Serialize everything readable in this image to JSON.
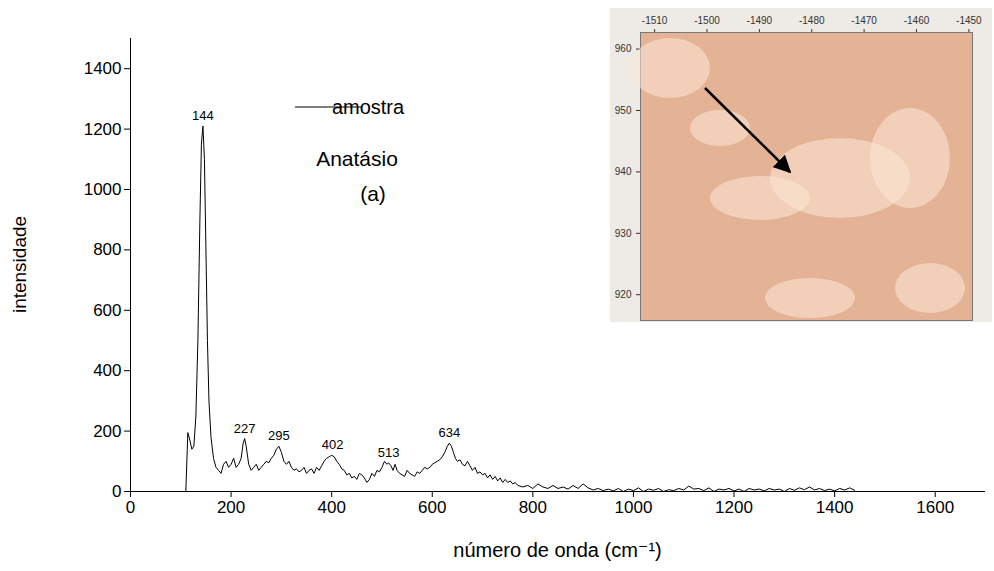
{
  "chart_data": [
    {
      "type": "line",
      "xlabel": "número de onda (cm⁻¹)",
      "ylabel": "intensidade",
      "annotations": [
        "Anatásio",
        "(a)"
      ],
      "peaks": [
        144,
        227,
        295,
        402,
        513,
        634
      ],
      "xlim": [
        0,
        1700
      ],
      "xticks": [
        0,
        200,
        400,
        600,
        800,
        1000,
        1200,
        1400,
        1600
      ],
      "ylim": [
        0,
        1500
      ],
      "yticks": [
        0,
        200,
        400,
        600,
        800,
        1000,
        1200,
        1400
      ],
      "grid": false,
      "legend": "top",
      "x": [
        110,
        114,
        118,
        122,
        126,
        130,
        134,
        138,
        141,
        144,
        147,
        150,
        153,
        156,
        160,
        165,
        170,
        175,
        180,
        185,
        190,
        195,
        200,
        205,
        210,
        215,
        220,
        224,
        227,
        230,
        235,
        240,
        245,
        250,
        255,
        260,
        265,
        270,
        275,
        280,
        285,
        290,
        295,
        300,
        305,
        310,
        315,
        320,
        325,
        330,
        335,
        340,
        345,
        350,
        355,
        360,
        365,
        370,
        375,
        380,
        385,
        390,
        395,
        400,
        405,
        410,
        415,
        420,
        425,
        430,
        435,
        440,
        445,
        450,
        455,
        460,
        465,
        470,
        475,
        480,
        485,
        490,
        495,
        500,
        505,
        510,
        513,
        518,
        522,
        526,
        530,
        535,
        540,
        545,
        550,
        555,
        560,
        565,
        570,
        575,
        580,
        585,
        590,
        595,
        600,
        605,
        610,
        615,
        620,
        625,
        630,
        634,
        638,
        642,
        646,
        650,
        655,
        660,
        665,
        670,
        675,
        680,
        685,
        690,
        695,
        700,
        705,
        710,
        715,
        720,
        725,
        730,
        735,
        740,
        745,
        750,
        755,
        760,
        765,
        770,
        780,
        790,
        800,
        810,
        820,
        830,
        840,
        850,
        860,
        870,
        880,
        890,
        900,
        910,
        920,
        930,
        940,
        950,
        960,
        970,
        980,
        990,
        1000,
        1010,
        1020,
        1030,
        1040,
        1050,
        1060,
        1070,
        1080,
        1090,
        1100,
        1110,
        1120,
        1130,
        1140,
        1150,
        1160,
        1170,
        1180,
        1190,
        1200,
        1210,
        1220,
        1230,
        1240,
        1250,
        1260,
        1270,
        1280,
        1290,
        1300,
        1310,
        1320,
        1330,
        1340,
        1350,
        1360,
        1370,
        1380,
        1390,
        1400,
        1410,
        1420,
        1430,
        1440
      ],
      "series": [
        {
          "name": "amostra",
          "color": "#000000",
          "values": [
            0,
            195,
            170,
            140,
            150,
            250,
            500,
            900,
            1150,
            1210,
            1100,
            800,
            500,
            300,
            180,
            110,
            80,
            70,
            60,
            90,
            100,
            80,
            90,
            110,
            80,
            90,
            110,
            160,
            175,
            150,
            90,
            70,
            80,
            90,
            70,
            80,
            90,
            100,
            95,
            110,
            120,
            140,
            150,
            130,
            100,
            90,
            100,
            80,
            70,
            75,
            65,
            70,
            80,
            60,
            70,
            75,
            60,
            80,
            70,
            85,
            100,
            110,
            115,
            120,
            115,
            100,
            90,
            75,
            70,
            55,
            60,
            45,
            50,
            40,
            60,
            55,
            45,
            30,
            40,
            60,
            50,
            70,
            65,
            80,
            100,
            90,
            95,
            85,
            70,
            90,
            70,
            60,
            55,
            50,
            70,
            60,
            55,
            50,
            65,
            60,
            70,
            80,
            75,
            80,
            90,
            95,
            100,
            105,
            115,
            130,
            150,
            160,
            150,
            130,
            110,
            100,
            105,
            90,
            85,
            100,
            85,
            70,
            80,
            60,
            65,
            55,
            60,
            45,
            55,
            40,
            50,
            35,
            45,
            30,
            40,
            30,
            35,
            25,
            30,
            20,
            15,
            20,
            10,
            25,
            15,
            10,
            20,
            10,
            15,
            8,
            20,
            10,
            25,
            12,
            5,
            10,
            3,
            8,
            2,
            10,
            0,
            8,
            3,
            12,
            0,
            8,
            4,
            10,
            0,
            6,
            3,
            10,
            5,
            18,
            8,
            10,
            3,
            12,
            0,
            8,
            5,
            10,
            2,
            8,
            0,
            10,
            5,
            8,
            2,
            10,
            5,
            8,
            0,
            10,
            4,
            12,
            6,
            15,
            5,
            10,
            3,
            8,
            2,
            10,
            5,
            12,
            4
          ]
        }
      ]
    },
    {
      "type": "image",
      "xlim": [
        -1512.7,
        -1449.3
      ],
      "xticks": [
        -1510,
        -1500,
        -1490,
        -1480,
        -1470,
        -1460,
        -1450
      ],
      "ylim": [
        915.8,
        962.7
      ],
      "yticks": [
        920,
        930,
        940,
        950,
        960
      ]
    }
  ]
}
